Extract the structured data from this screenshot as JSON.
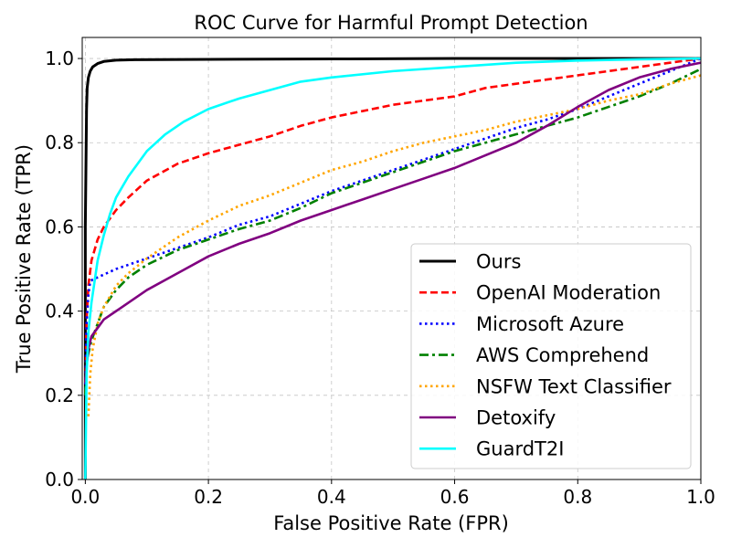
{
  "chart_data": {
    "type": "line",
    "title": "ROC Curve for Harmful Prompt Detection",
    "xlabel": "False Positive Rate (FPR)",
    "ylabel": "True Positive Rate (TPR)",
    "xlim": [
      -0.005,
      1.0
    ],
    "ylim": [
      0.0,
      1.05
    ],
    "xticks": [
      0.0,
      0.2,
      0.4,
      0.6,
      0.8,
      1.0
    ],
    "xtick_labels": [
      "0.0",
      "0.2",
      "0.4",
      "0.6",
      "0.8",
      "1.0"
    ],
    "yticks": [
      0.0,
      0.2,
      0.4,
      0.6,
      0.8,
      1.0
    ],
    "ytick_labels": [
      "0.0",
      "0.2",
      "0.4",
      "0.6",
      "0.8",
      "1.0"
    ],
    "grid": true,
    "legend_position": "lower-right",
    "series": [
      {
        "name": "Ours",
        "color": "#000000",
        "style": "solid",
        "x": [
          0.0,
          0.0,
          0.002,
          0.003,
          0.005,
          0.008,
          0.012,
          0.02,
          0.03,
          0.05,
          0.08,
          0.2,
          0.4,
          0.6,
          0.8,
          1.0
        ],
        "y": [
          0.0,
          0.6,
          0.88,
          0.93,
          0.955,
          0.97,
          0.98,
          0.988,
          0.993,
          0.996,
          0.997,
          0.998,
          0.999,
          1.0,
          1.0,
          1.0
        ]
      },
      {
        "name": "OpenAI Moderation",
        "color": "#ff0000",
        "style": "dashed",
        "x": [
          0.0,
          0.002,
          0.005,
          0.01,
          0.02,
          0.03,
          0.05,
          0.07,
          0.1,
          0.15,
          0.2,
          0.25,
          0.3,
          0.35,
          0.4,
          0.45,
          0.5,
          0.55,
          0.6,
          0.65,
          0.7,
          0.75,
          0.8,
          0.85,
          0.9,
          0.95,
          1.0
        ],
        "y": [
          0.2,
          0.38,
          0.46,
          0.52,
          0.57,
          0.6,
          0.64,
          0.67,
          0.71,
          0.75,
          0.775,
          0.795,
          0.815,
          0.84,
          0.86,
          0.875,
          0.89,
          0.9,
          0.91,
          0.93,
          0.94,
          0.95,
          0.96,
          0.97,
          0.98,
          0.99,
          1.0
        ]
      },
      {
        "name": "Microsoft Azure",
        "color": "#0000ff",
        "style": "dotted",
        "x": [
          0.0,
          0.002,
          0.005,
          0.008,
          0.012,
          0.02,
          0.05,
          0.1,
          0.15,
          0.2,
          0.25,
          0.3,
          0.35,
          0.4,
          0.45,
          0.5,
          0.55,
          0.6,
          0.65,
          0.7,
          0.75,
          0.8,
          0.85,
          0.9,
          0.95,
          1.0
        ],
        "y": [
          0.2,
          0.37,
          0.44,
          0.47,
          0.475,
          0.48,
          0.5,
          0.525,
          0.55,
          0.575,
          0.605,
          0.625,
          0.655,
          0.685,
          0.71,
          0.735,
          0.76,
          0.785,
          0.81,
          0.835,
          0.855,
          0.88,
          0.91,
          0.94,
          0.97,
          1.0
        ]
      },
      {
        "name": "AWS Comprehend",
        "color": "#008000",
        "style": "dashdot",
        "x": [
          0.0,
          0.002,
          0.005,
          0.01,
          0.02,
          0.03,
          0.05,
          0.07,
          0.1,
          0.15,
          0.2,
          0.25,
          0.3,
          0.35,
          0.4,
          0.45,
          0.5,
          0.55,
          0.6,
          0.65,
          0.7,
          0.75,
          0.8,
          0.85,
          0.9,
          0.95,
          1.0
        ],
        "y": [
          0.2,
          0.28,
          0.3,
          0.33,
          0.37,
          0.41,
          0.45,
          0.48,
          0.51,
          0.545,
          0.57,
          0.595,
          0.615,
          0.645,
          0.68,
          0.705,
          0.73,
          0.755,
          0.78,
          0.8,
          0.82,
          0.84,
          0.86,
          0.885,
          0.91,
          0.94,
          0.975
        ]
      },
      {
        "name": "NSFW Text Classifier",
        "color": "#ffa500",
        "style": "dotted",
        "x": [
          0.005,
          0.008,
          0.012,
          0.02,
          0.03,
          0.05,
          0.07,
          0.1,
          0.15,
          0.2,
          0.25,
          0.3,
          0.35,
          0.4,
          0.45,
          0.5,
          0.55,
          0.6,
          0.65,
          0.7,
          0.75,
          0.8,
          0.85,
          0.9,
          0.95,
          1.0
        ],
        "y": [
          0.15,
          0.25,
          0.31,
          0.37,
          0.41,
          0.46,
          0.49,
          0.525,
          0.575,
          0.615,
          0.65,
          0.675,
          0.705,
          0.735,
          0.755,
          0.78,
          0.8,
          0.815,
          0.83,
          0.85,
          0.865,
          0.88,
          0.9,
          0.915,
          0.94,
          0.96
        ]
      },
      {
        "name": "Detoxify",
        "color": "#800080",
        "style": "solid",
        "x": [
          0.0,
          0.002,
          0.005,
          0.01,
          0.02,
          0.03,
          0.05,
          0.07,
          0.1,
          0.15,
          0.2,
          0.25,
          0.3,
          0.35,
          0.4,
          0.45,
          0.5,
          0.55,
          0.6,
          0.65,
          0.7,
          0.75,
          0.8,
          0.85,
          0.9,
          0.95,
          1.0
        ],
        "y": [
          0.23,
          0.27,
          0.31,
          0.34,
          0.36,
          0.38,
          0.4,
          0.42,
          0.45,
          0.49,
          0.53,
          0.56,
          0.585,
          0.615,
          0.64,
          0.665,
          0.69,
          0.715,
          0.74,
          0.77,
          0.8,
          0.84,
          0.885,
          0.925,
          0.955,
          0.975,
          0.99
        ]
      },
      {
        "name": "GuardT2I",
        "color": "#00ffff",
        "style": "solid",
        "x": [
          0.0,
          0.002,
          0.005,
          0.01,
          0.015,
          0.02,
          0.03,
          0.04,
          0.05,
          0.07,
          0.1,
          0.13,
          0.16,
          0.2,
          0.25,
          0.3,
          0.35,
          0.4,
          0.5,
          0.6,
          0.7,
          0.8,
          0.9,
          1.0
        ],
        "y": [
          0.0,
          0.25,
          0.35,
          0.42,
          0.47,
          0.52,
          0.58,
          0.63,
          0.67,
          0.72,
          0.78,
          0.82,
          0.85,
          0.88,
          0.905,
          0.925,
          0.945,
          0.955,
          0.97,
          0.98,
          0.99,
          0.995,
          0.998,
          1.0
        ]
      }
    ]
  }
}
